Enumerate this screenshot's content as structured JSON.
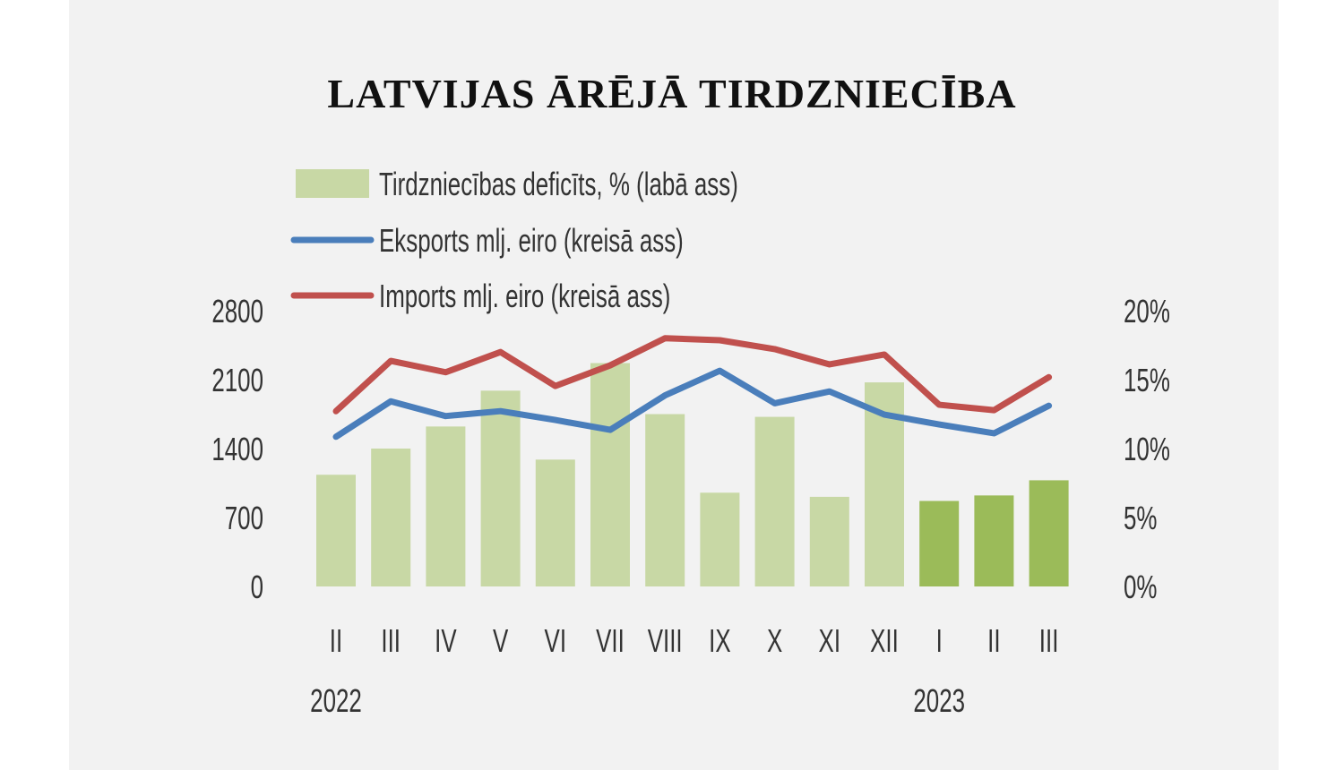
{
  "chart_data": {
    "type": "bar+line",
    "title": "LATVIJAS ĀRĒJĀ TIRDZNIECĪBA",
    "categories": [
      "II",
      "III",
      "IV",
      "V",
      "VI",
      "VII",
      "VIII",
      "IX",
      "X",
      "XI",
      "XII",
      "I",
      "II",
      "III"
    ],
    "year_labels": [
      {
        "label": "2022",
        "index": 0
      },
      {
        "label": "2023",
        "index": 11
      }
    ],
    "left_axis": {
      "ticks": [
        "0",
        "700",
        "1400",
        "2100",
        "2800"
      ],
      "range": [
        0,
        2800
      ]
    },
    "right_axis": {
      "ticks": [
        "0%",
        "5%",
        "10%",
        "15%",
        "20%"
      ],
      "range": [
        0,
        20
      ]
    },
    "series": [
      {
        "name": "Tirdzniecības deficīts, % (labā ass)",
        "type": "bar",
        "axis": "right",
        "color": "#c8d8a5",
        "highlight_color": "#9bbb59",
        "highlight_from_index": 11,
        "values": [
          8.1,
          10.0,
          11.6,
          14.2,
          9.2,
          16.2,
          12.5,
          6.8,
          12.3,
          6.5,
          14.8,
          6.2,
          6.6,
          7.7
        ]
      },
      {
        "name": "Eksports mlj. eiro (kreisā ass)",
        "type": "line",
        "axis": "left",
        "color": "#4a7ebb",
        "values": [
          1520,
          1880,
          1730,
          1780,
          1690,
          1590,
          1940,
          2190,
          1860,
          1980,
          1745,
          1645,
          1555,
          1835
        ]
      },
      {
        "name": "Imports mlj. eiro (kreisā ass)",
        "type": "line",
        "axis": "left",
        "color": "#c0504d",
        "values": [
          1780,
          2290,
          2175,
          2380,
          2035,
          2245,
          2520,
          2500,
          2410,
          2255,
          2355,
          1845,
          1790,
          2125
        ]
      }
    ],
    "legend_placement": "top-left",
    "grid": false
  }
}
